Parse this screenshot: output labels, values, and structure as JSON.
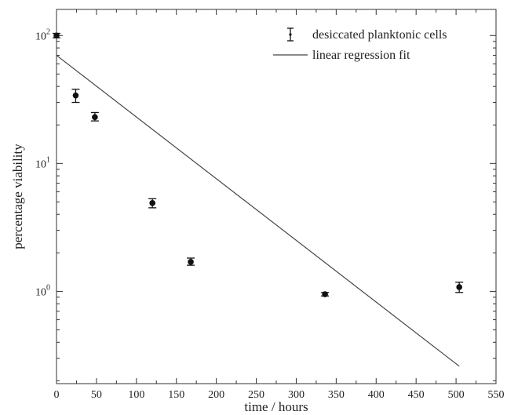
{
  "chart_data": {
    "type": "scatter",
    "title": "",
    "xlabel": "time / hours",
    "ylabel": "percentage viability",
    "x_scale": "linear",
    "y_scale": "log",
    "xlim": [
      0,
      550
    ],
    "ylim": [
      0.19,
      160
    ],
    "x_ticks": [
      0,
      50,
      100,
      150,
      200,
      250,
      300,
      350,
      400,
      450,
      500,
      550
    ],
    "y_ticks": [
      {
        "value": 1,
        "base": "10",
        "exp": "0"
      },
      {
        "value": 10,
        "base": "10",
        "exp": "1"
      },
      {
        "value": 100,
        "base": "10",
        "exp": "2"
      }
    ],
    "grid": false,
    "legend_position": "top-right",
    "series": [
      {
        "name": "desiccated planktonic cells",
        "kind": "errorbar",
        "color": "#111111",
        "points": [
          {
            "x": 0,
            "y": 100,
            "ylow": 96,
            "yhigh": 104
          },
          {
            "x": 24,
            "y": 34,
            "ylow": 30,
            "yhigh": 38
          },
          {
            "x": 48,
            "y": 23,
            "ylow": 21.5,
            "yhigh": 25
          },
          {
            "x": 120,
            "y": 4.9,
            "ylow": 4.5,
            "yhigh": 5.3
          },
          {
            "x": 168,
            "y": 1.7,
            "ylow": 1.6,
            "yhigh": 1.82
          },
          {
            "x": 336,
            "y": 0.95,
            "ylow": 0.92,
            "yhigh": 0.98
          },
          {
            "x": 504,
            "y": 1.08,
            "ylow": 0.98,
            "yhigh": 1.18
          }
        ]
      },
      {
        "name": "linear regression fit",
        "kind": "line",
        "color": "#444444",
        "points": [
          {
            "x": 0,
            "y": 70
          },
          {
            "x": 504,
            "y": 0.26
          }
        ]
      }
    ]
  }
}
